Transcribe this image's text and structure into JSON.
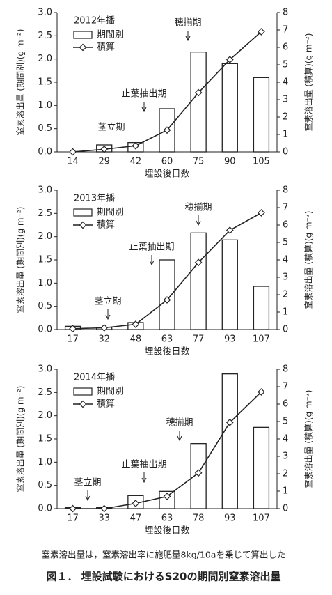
{
  "chart_data": [
    {
      "type": "bar",
      "title": "2012年播",
      "categories": [
        "14",
        "29",
        "42",
        "60",
        "75",
        "90",
        "105"
      ],
      "series": [
        {
          "name": "期間別",
          "type": "bar",
          "color": "#ffffff",
          "values": [
            0,
            0.15,
            0.2,
            0.93,
            2.15,
            1.9,
            1.6
          ]
        },
        {
          "name": "積算",
          "type": "line",
          "axis": "y2",
          "color": "#222222",
          "values": [
            0,
            0.15,
            0.35,
            1.25,
            3.4,
            5.3,
            6.9
          ]
        }
      ],
      "ylim": [
        0,
        3
      ],
      "yticks": [
        {
          "value": 0,
          "label": "0.0"
        },
        0.5,
        {
          "value": 1,
          "label": "1.0"
        },
        1.5,
        {
          "value": 2,
          "label": "2.0"
        },
        2.5,
        {
          "value": 3,
          "label": "3.0"
        }
      ],
      "y2lim": [
        0,
        8
      ],
      "y2ticks": [
        0,
        1,
        2,
        3,
        4,
        5,
        6,
        7,
        8
      ],
      "xlabel": "埋設後日数",
      "ylabel": "窒素溶出量 (期間別)(g m⁻²)",
      "y2label": "窒素溶出量 (積算)(g m⁻²)",
      "annotations": [
        "茎立期",
        "止葉抽出期",
        "穂揃期"
      ]
    },
    {
      "type": "bar",
      "title": "2013年播",
      "categories": [
        "17",
        "32",
        "48",
        "63",
        "77",
        "93",
        "107"
      ],
      "series": [
        {
          "name": "期間別",
          "type": "bar",
          "color": "#ffffff",
          "values": [
            0.07,
            0.05,
            0.15,
            1.5,
            2.08,
            1.93,
            0.93
          ]
        },
        {
          "name": "積算",
          "type": "line",
          "axis": "y2",
          "color": "#222222",
          "values": [
            0.05,
            0.1,
            0.3,
            1.7,
            3.85,
            5.7,
            6.7
          ]
        }
      ],
      "ylim": [
        0,
        3
      ],
      "yticks": [
        {
          "value": 0,
          "label": "0.0"
        },
        0.5,
        {
          "value": 1,
          "label": "1.0"
        },
        1.5,
        {
          "value": 2,
          "label": "2.0"
        },
        2.5,
        {
          "value": 3,
          "label": "3.0"
        }
      ],
      "y2lim": [
        0,
        8
      ],
      "y2ticks": [
        0,
        1,
        2,
        3,
        4,
        5,
        6,
        7,
        8
      ],
      "xlabel": "埋設後日数",
      "ylabel": "窒素溶出量 (期間別)(g m⁻²)",
      "y2label": "窒素溶出量 (積算)(g m⁻²)",
      "annotations": [
        "茎立期",
        "止葉抽出期",
        "穂揃期"
      ]
    },
    {
      "type": "bar",
      "title": "2014年播",
      "categories": [
        "17",
        "33",
        "47",
        "63",
        "78",
        "93",
        "107"
      ],
      "series": [
        {
          "name": "期間別",
          "type": "bar",
          "color": "#ffffff",
          "values": [
            0.02,
            0.02,
            0.28,
            0.37,
            1.4,
            2.9,
            1.75
          ]
        },
        {
          "name": "積算",
          "type": "line",
          "axis": "y2",
          "color": "#222222",
          "values": [
            0,
            0,
            0.3,
            0.7,
            2.05,
            4.95,
            6.7
          ]
        }
      ],
      "ylim": [
        0,
        3
      ],
      "yticks": [
        {
          "value": 0,
          "label": "0.0"
        },
        0.5,
        {
          "value": 1,
          "label": "1.0"
        },
        1.5,
        {
          "value": 2,
          "label": "2.0"
        },
        2.5,
        {
          "value": 3,
          "label": "3.0"
        }
      ],
      "y2lim": [
        0,
        8
      ],
      "y2ticks": [
        0,
        1,
        2,
        3,
        4,
        5,
        6,
        7,
        8
      ],
      "xlabel": "埋設後日数",
      "ylabel": "窒素溶出量 (期間別)(g m⁻²)",
      "y2label": "窒素溶出量 (積算)(g m⁻²)",
      "annotations": [
        "茎立期",
        "止葉抽出期",
        "穂揃期"
      ]
    }
  ],
  "footnote": "窒素溶出量は，窒素溶出率に施肥量8kg/10aを乗じて算出した",
  "figure_caption": "図１． 埋設試験におけるS20の期間別窒素溶出量"
}
